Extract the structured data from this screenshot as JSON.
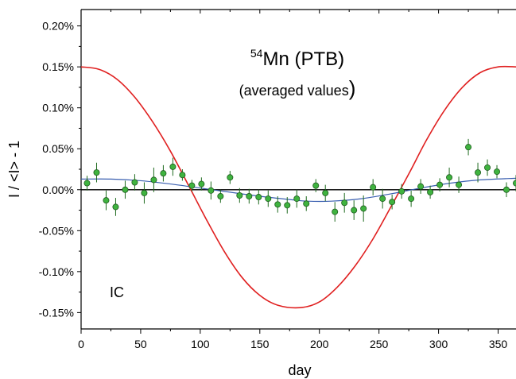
{
  "chart_data": {
    "type": "scatter",
    "title_super": "54",
    "title_main": "Mn (PTB)",
    "subtitle": "(averaged values",
    "subtitle_close": ")",
    "annotation": "IC",
    "xlabel": "day",
    "ylabel": "I / <I> - 1",
    "xlim": [
      0,
      365
    ],
    "ylim": [
      -0.17,
      0.22
    ],
    "x_ticks": [
      0,
      50,
      100,
      150,
      200,
      250,
      300,
      350
    ],
    "x_tick_labels": [
      "0",
      "50",
      "100",
      "150",
      "200",
      "250",
      "300",
      "350"
    ],
    "y_ticks": [
      0.2,
      0.15,
      0.1,
      0.05,
      0.0,
      -0.05,
      -0.1,
      -0.15
    ],
    "y_tick_labels": [
      "0.20%",
      "0.15%",
      "0.10%",
      "0.05%",
      "0.00%",
      "-0.05%",
      "-0.10%",
      "-0.15%"
    ],
    "grid": false,
    "colors": {
      "points": "#3fb33f",
      "point_edge": "#1e5a1e",
      "error_bars": "#1f6b1f",
      "red_curve": "#e02020",
      "blue_curve": "#3a5fb0",
      "zero_line": "#000000",
      "annotation": "#7a7a2a"
    },
    "series": [
      {
        "kind": "points",
        "x": [
          5,
          13,
          21,
          29,
          37,
          45,
          53,
          61,
          69,
          77,
          85,
          93,
          101,
          109,
          117,
          125,
          133,
          141,
          149,
          157,
          165,
          173,
          181,
          189,
          197,
          205,
          213,
          221,
          229,
          237,
          245,
          253,
          261,
          269,
          277,
          285,
          293,
          301,
          309,
          317,
          325,
          333,
          341,
          349,
          357,
          365
        ],
        "y": [
          0.008,
          0.021,
          -0.013,
          -0.021,
          0.0,
          0.009,
          -0.004,
          0.012,
          0.02,
          0.028,
          0.018,
          0.005,
          0.007,
          -0.001,
          -0.008,
          0.015,
          -0.007,
          -0.008,
          -0.009,
          -0.011,
          -0.018,
          -0.019,
          -0.011,
          -0.017,
          0.005,
          -0.004,
          -0.027,
          -0.016,
          -0.025,
          -0.023,
          0.003,
          -0.011,
          -0.015,
          -0.002,
          -0.011,
          0.004,
          -0.003,
          0.006,
          0.015,
          0.006,
          0.052,
          0.021,
          0.027,
          0.022,
          0.0,
          0.008
        ],
        "err": [
          0.009,
          0.012,
          0.012,
          0.011,
          0.011,
          0.01,
          0.013,
          0.015,
          0.01,
          0.011,
          0.007,
          0.007,
          0.008,
          0.011,
          0.008,
          0.008,
          0.009,
          0.009,
          0.009,
          0.01,
          0.01,
          0.01,
          0.011,
          0.009,
          0.008,
          0.01,
          0.012,
          0.012,
          0.012,
          0.016,
          0.01,
          0.012,
          0.009,
          0.009,
          0.01,
          0.009,
          0.008,
          0.008,
          0.012,
          0.01,
          0.01,
          0.012,
          0.01,
          0.008,
          0.009,
          0.01
        ]
      },
      {
        "kind": "red-cosine",
        "x": [
          0,
          15,
          30,
          45,
          60,
          75,
          91,
          105,
          120,
          135,
          150,
          165,
          184,
          200,
          215,
          230,
          245,
          260,
          276,
          290,
          305,
          320,
          335,
          350,
          365
        ],
        "y": [
          0.15,
          0.147,
          0.135,
          0.113,
          0.083,
          0.047,
          0.003,
          -0.036,
          -0.075,
          -0.107,
          -0.129,
          -0.141,
          -0.144,
          -0.137,
          -0.119,
          -0.093,
          -0.06,
          -0.021,
          0.022,
          0.061,
          0.097,
          0.125,
          0.143,
          0.15,
          0.15
        ]
      },
      {
        "kind": "blue-fit",
        "x": [
          0,
          25,
          50,
          75,
          100,
          125,
          150,
          175,
          190,
          210,
          235,
          260,
          285,
          310,
          335,
          365
        ],
        "y": [
          0.013,
          0.013,
          0.011,
          0.007,
          0.002,
          -0.003,
          -0.008,
          -0.012,
          -0.014,
          -0.014,
          -0.011,
          -0.005,
          0.002,
          0.008,
          0.012,
          0.014
        ]
      }
    ]
  }
}
